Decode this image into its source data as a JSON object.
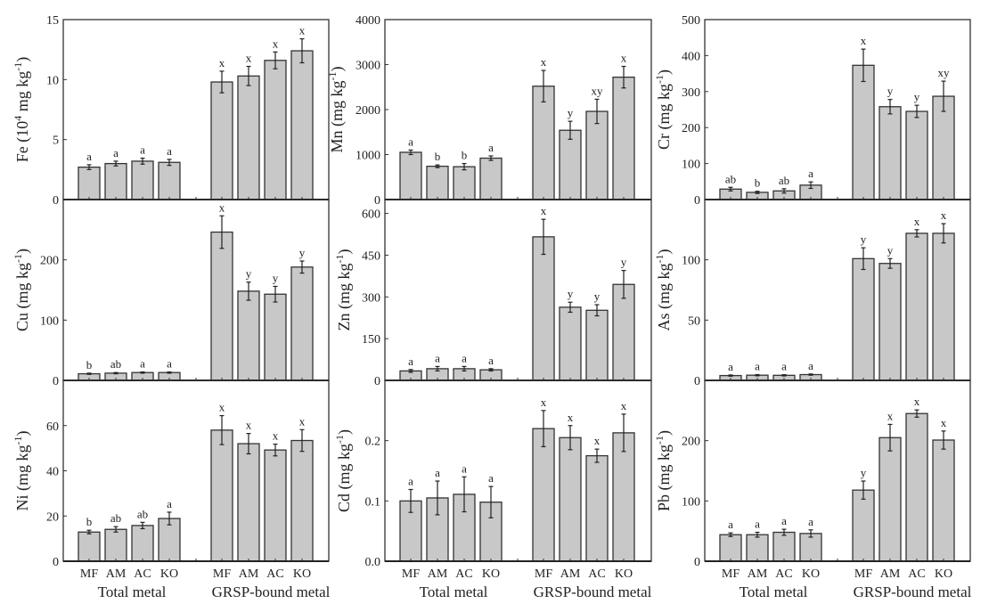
{
  "chart_data": {
    "type": "bar",
    "layout": "3x3 grid of panels",
    "groups": [
      "Total metal",
      "GRSP-bound metal"
    ],
    "categories": [
      "MF",
      "AM",
      "AC",
      "KO"
    ],
    "panels": [
      {
        "metal": "Fe",
        "ylabel_main": "Fe (10",
        "ylabel_sup": "4",
        "ylabel_unit": " mg kg",
        "ylabel_sup2": "-1",
        "ylabel_end": ")",
        "ylim": [
          0,
          15
        ],
        "yticks": [
          "0",
          "5",
          "10",
          "15"
        ],
        "ytick_values": [
          0,
          5,
          10,
          15
        ],
        "total": {
          "values": [
            2.7,
            3.0,
            3.2,
            3.1
          ],
          "errors": [
            0.2,
            0.2,
            0.25,
            0.25
          ],
          "letters": [
            "a",
            "a",
            "a",
            "a"
          ]
        },
        "grsp": {
          "values": [
            9.8,
            10.3,
            11.6,
            12.4
          ],
          "errors": [
            0.9,
            0.8,
            0.7,
            1.0
          ],
          "letters": [
            "x",
            "x",
            "x",
            "x"
          ]
        }
      },
      {
        "metal": "Mn",
        "ylabel_main": "Mn (mg kg",
        "ylabel_sup": "-1",
        "ylabel_end": ")",
        "ylim": [
          0,
          4000
        ],
        "yticks": [
          "0",
          "1000",
          "2000",
          "3000",
          "4000"
        ],
        "ytick_values": [
          0,
          1000,
          2000,
          3000,
          4000
        ],
        "total": {
          "values": [
            1050,
            740,
            730,
            920
          ],
          "errors": [
            50,
            30,
            70,
            50
          ],
          "letters": [
            "a",
            "b",
            "b",
            "a"
          ]
        },
        "grsp": {
          "values": [
            2520,
            1540,
            1960,
            2720
          ],
          "errors": [
            350,
            200,
            270,
            240
          ],
          "letters": [
            "x",
            "y",
            "xy",
            "x"
          ]
        }
      },
      {
        "metal": "Cr",
        "ylabel_main": "Cr (mg kg",
        "ylabel_sup": "-1",
        "ylabel_end": ")",
        "ylim": [
          0,
          500
        ],
        "yticks": [
          "0",
          "100",
          "200",
          "300",
          "400",
          "500"
        ],
        "ytick_values": [
          0,
          100,
          200,
          300,
          400,
          500
        ],
        "total": {
          "values": [
            29,
            20,
            24,
            40
          ],
          "errors": [
            5,
            3,
            6,
            9
          ],
          "letters": [
            "ab",
            "b",
            "ab",
            "a"
          ]
        },
        "grsp": {
          "values": [
            373,
            258,
            245,
            287
          ],
          "errors": [
            45,
            20,
            17,
            42
          ],
          "letters": [
            "x",
            "y",
            "y",
            "xy"
          ]
        }
      },
      {
        "metal": "Cu",
        "ylabel_main": "Cu (mg kg",
        "ylabel_sup": "-1",
        "ylabel_end": ")",
        "ylim": [
          0,
          300
        ],
        "yticks": [
          "0",
          "100",
          "200"
        ],
        "ytick_values": [
          0,
          100,
          200
        ],
        "total": {
          "values": [
            11,
            12,
            13,
            13
          ],
          "errors": [
            1,
            1,
            1,
            1
          ],
          "letters": [
            "b",
            "ab",
            "a",
            "a"
          ]
        },
        "grsp": {
          "values": [
            246,
            148,
            143,
            188
          ],
          "errors": [
            27,
            15,
            13,
            10
          ],
          "letters": [
            "x",
            "y",
            "y",
            "y"
          ]
        }
      },
      {
        "metal": "Zn",
        "ylabel_main": "Zn (mg kg",
        "ylabel_sup": "-1",
        "ylabel_end": ")",
        "ylim": [
          0,
          650
        ],
        "yticks": [
          "0",
          "150",
          "300",
          "450",
          "600"
        ],
        "ytick_values": [
          0,
          150,
          300,
          450,
          600
        ],
        "total": {
          "values": [
            34,
            42,
            42,
            38
          ],
          "errors": [
            5,
            8,
            8,
            4
          ],
          "letters": [
            "a",
            "a",
            "a",
            "a"
          ]
        },
        "grsp": {
          "values": [
            516,
            263,
            252,
            345
          ],
          "errors": [
            63,
            18,
            20,
            50
          ],
          "letters": [
            "x",
            "y",
            "y",
            "y"
          ]
        }
      },
      {
        "metal": "As",
        "ylabel_main": "As (mg kg",
        "ylabel_sup": "-1",
        "ylabel_end": ")",
        "ylim": [
          0,
          150
        ],
        "yticks": [
          "0",
          "50",
          "100"
        ],
        "ytick_values": [
          0,
          50,
          100
        ],
        "total": {
          "values": [
            4,
            4.3,
            4.2,
            4.8
          ],
          "errors": [
            0.5,
            0.5,
            0.5,
            0.5
          ],
          "letters": [
            "a",
            "a",
            "a",
            "a"
          ]
        },
        "grsp": {
          "values": [
            101,
            97,
            122,
            122
          ],
          "errors": [
            9,
            4,
            3,
            8
          ],
          "letters": [
            "y",
            "y",
            "x",
            "x"
          ]
        }
      },
      {
        "metal": "Ni",
        "ylabel_main": "Ni (mg kg",
        "ylabel_sup": "-1",
        "ylabel_end": ")",
        "ylim": [
          0,
          80
        ],
        "yticks": [
          "0",
          "20",
          "40",
          "60"
        ],
        "ytick_values": [
          0,
          20,
          40,
          60
        ],
        "total": {
          "values": [
            12.9,
            14.1,
            15.8,
            18.9
          ],
          "errors": [
            0.8,
            1.2,
            1.4,
            2.8
          ],
          "letters": [
            "b",
            "ab",
            "ab",
            "a"
          ]
        },
        "grsp": {
          "values": [
            58,
            52,
            49.2,
            53.4
          ],
          "errors": [
            6.4,
            4.5,
            2.6,
            4.8
          ],
          "letters": [
            "x",
            "x",
            "x",
            "x"
          ]
        }
      },
      {
        "metal": "Cd",
        "ylabel_main": "Cd (mg kg",
        "ylabel_sup": "-1",
        "ylabel_end": ")",
        "ylim": [
          0,
          0.3
        ],
        "yticks": [
          "0.0",
          "0.1",
          "0.2"
        ],
        "ytick_values": [
          0,
          0.1,
          0.2
        ],
        "total": {
          "values": [
            0.1,
            0.105,
            0.111,
            0.098
          ],
          "errors": [
            0.019,
            0.028,
            0.029,
            0.026
          ],
          "letters": [
            "a",
            "a",
            "a",
            "a"
          ]
        },
        "grsp": {
          "values": [
            0.22,
            0.205,
            0.175,
            0.213
          ],
          "errors": [
            0.03,
            0.02,
            0.011,
            0.031
          ],
          "letters": [
            "x",
            "x",
            "x",
            "x"
          ]
        }
      },
      {
        "metal": "Pb",
        "ylabel_main": "Pb (mg kg",
        "ylabel_sup": "-1",
        "ylabel_end": ")",
        "ylim": [
          0,
          300
        ],
        "yticks": [
          "0",
          "100",
          "200"
        ],
        "ytick_values": [
          0,
          100,
          200
        ],
        "total": {
          "values": [
            44,
            44,
            48,
            46
          ],
          "errors": [
            3,
            4,
            5,
            6
          ],
          "letters": [
            "a",
            "a",
            "a",
            "a"
          ]
        },
        "grsp": {
          "values": [
            118,
            205,
            245,
            201
          ],
          "errors": [
            15,
            22,
            6,
            15
          ],
          "letters": [
            "y",
            "x",
            "x",
            "x"
          ]
        }
      }
    ],
    "title": "",
    "xlabel": "",
    "grid": false,
    "legend": "none"
  }
}
